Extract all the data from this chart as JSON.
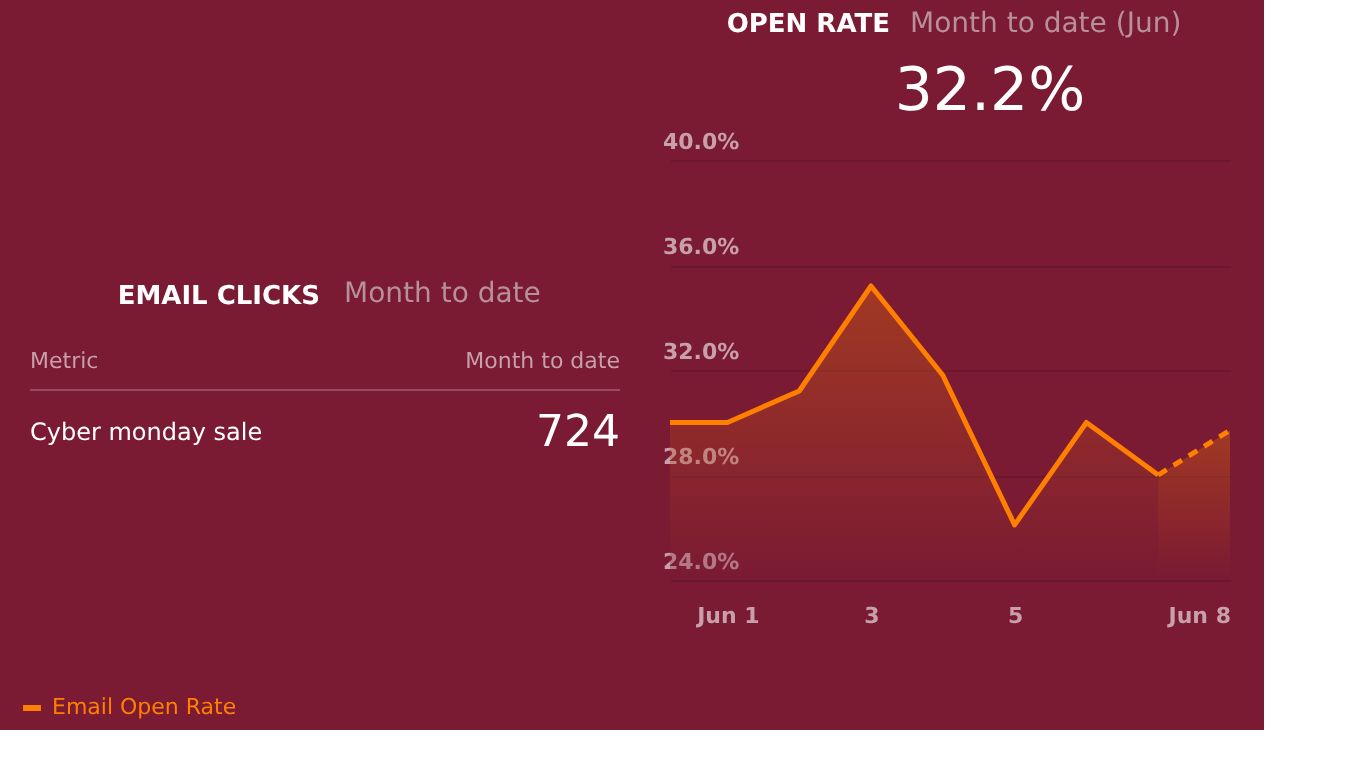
{
  "chart_data": [
    {
      "type": "other",
      "title": "EMAIL CLICKS",
      "subtitle": "Month to date",
      "xlabel": "Metric",
      "ylabel": "Month to date",
      "categories": [
        "Cyber monday sale"
      ],
      "values": [
        724
      ],
      "data_labels": true
    },
    {
      "type": "area",
      "title": "OPEN RATE",
      "subtitle": "Month to date (Jun)",
      "annotations": [
        "32.2%"
      ],
      "series": [
        {
          "name": "Email Open Rate",
          "color": "#ff8000",
          "x": [
            0.2,
            1,
            2,
            3,
            4,
            5,
            6,
            7
          ],
          "values": [
            30.0,
            30.0,
            31.2,
            35.2,
            31.8,
            26.1,
            30.0,
            28.0
          ]
        },
        {
          "color": "#ff8000",
          "line_style": "dashed",
          "x": [
            7,
            8
          ],
          "values": [
            28.0,
            29.7
          ]
        }
      ],
      "xlim": [
        0.2,
        8
      ],
      "xticks": [
        {
          "value": 1,
          "label": "Jun 1"
        },
        3,
        5,
        {
          "value": 8,
          "label": "Jun 8"
        }
      ],
      "ylim": [
        24,
        40
      ],
      "yticks": [
        {
          "value": 24,
          "label": "24.0%"
        },
        {
          "value": 28,
          "label": "28.0%"
        },
        {
          "value": 32,
          "label": "32.0%"
        },
        {
          "value": 36,
          "label": "36.0%"
        },
        {
          "value": 40,
          "label": "40.0%"
        }
      ],
      "grid": "y",
      "legend": "bottom",
      "line_style": "solid"
    }
  ]
}
